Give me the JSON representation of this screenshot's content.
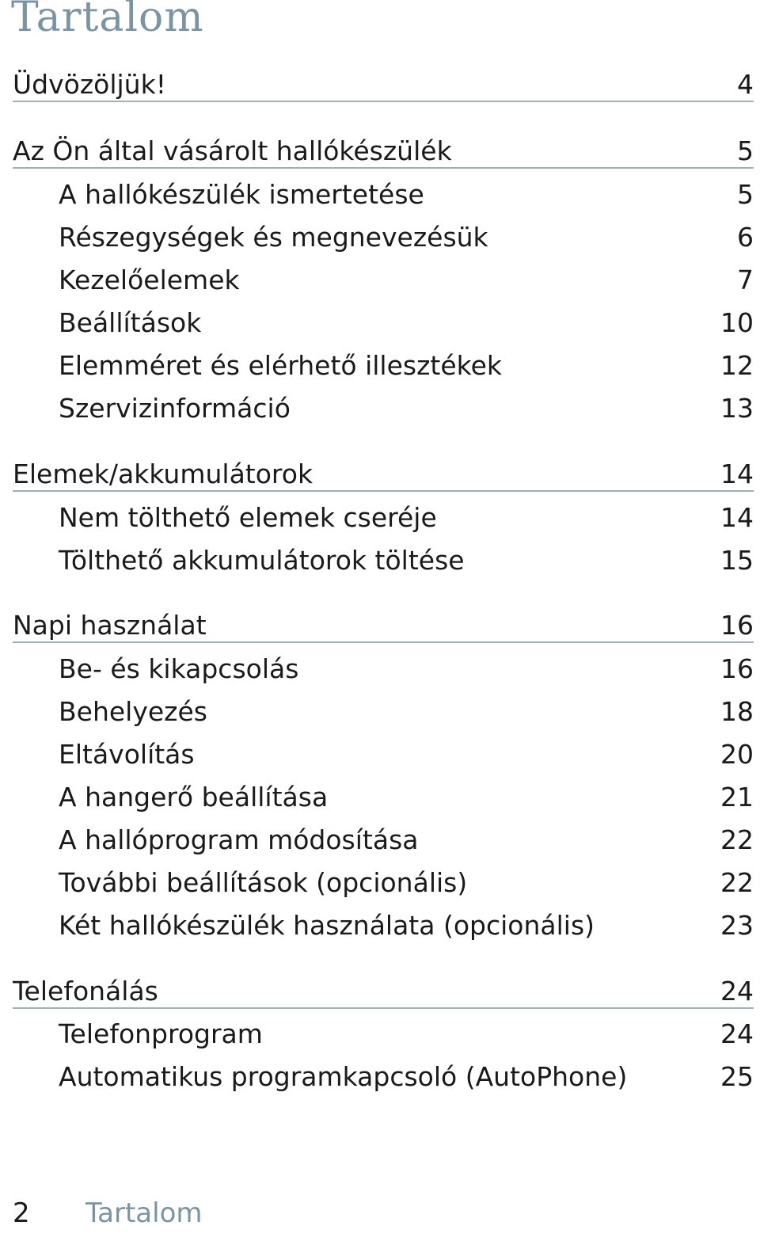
{
  "title": "Tartalom",
  "sections": [
    {
      "label": "Üdvözöljük!",
      "page": "4",
      "items": []
    },
    {
      "label": "Az Ön által vásárolt hallókészülék",
      "page": "5",
      "items": [
        {
          "label": "A hallókészülék ismertetése",
          "page": "5"
        },
        {
          "label": "Részegységek és megnevezésük",
          "page": "6"
        },
        {
          "label": "Kezelőelemek",
          "page": "7"
        },
        {
          "label": "Beállítások",
          "page": "10"
        },
        {
          "label": "Elemméret és elérhető illesztékek",
          "page": "12"
        },
        {
          "label": "Szervizinformáció",
          "page": "13"
        }
      ]
    },
    {
      "label": "Elemek/akkumulátorok",
      "page": "14",
      "items": [
        {
          "label": "Nem tölthető elemek cseréje",
          "page": "14"
        },
        {
          "label": "Tölthető akkumulátorok töltése",
          "page": "15"
        }
      ]
    },
    {
      "label": "Napi használat",
      "page": "16",
      "items": [
        {
          "label": "Be- és kikapcsolás",
          "page": "16"
        },
        {
          "label": "Behelyezés",
          "page": "18"
        },
        {
          "label": "Eltávolítás",
          "page": "20"
        },
        {
          "label": "A hangerő beállítása",
          "page": "21"
        },
        {
          "label": "A hallóprogram módosítása",
          "page": "22"
        },
        {
          "label": "További beállítások (opcionális)",
          "page": "22"
        },
        {
          "label": "Két hallókészülék használata (opcionális)",
          "page": "23"
        }
      ]
    },
    {
      "label": "Telefonálás",
      "page": "24",
      "items": [
        {
          "label": "Telefonprogram",
          "page": "24"
        },
        {
          "label": "Automatikus programkapcsoló (AutoPhone)",
          "page": "25"
        }
      ]
    }
  ],
  "footer": {
    "page_number": "2",
    "section_title": "Tartalom"
  }
}
